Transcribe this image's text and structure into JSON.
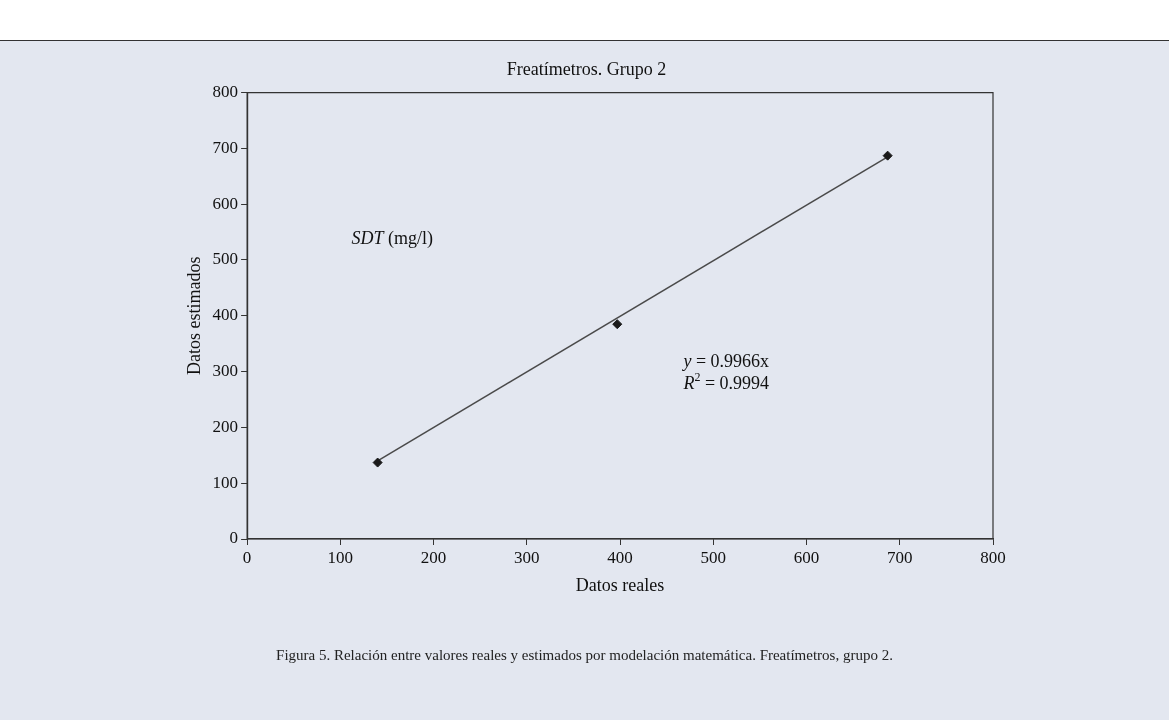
{
  "chart_data": {
    "type": "scatter",
    "title": "Freatímetros. Grupo 2",
    "xlabel": "Datos reales",
    "ylabel": "Datos estimados",
    "x": [
      140,
      397,
      687
    ],
    "series": [
      {
        "color": "#1a1a1a",
        "values": [
          137,
          385,
          687
        ],
        "marker": "diamond"
      },
      {
        "type": "line",
        "color": "#4a4a4a",
        "x": [
          140,
          687
        ],
        "values": [
          140,
          685
        ],
        "marker": "none"
      }
    ],
    "xlim": [
      0,
      800
    ],
    "xticks": [
      0,
      100,
      200,
      300,
      400,
      500,
      600,
      700,
      800
    ],
    "ylim": [
      0,
      800
    ],
    "yticks": [
      0,
      100,
      200,
      300,
      400,
      500,
      600,
      700,
      800
    ],
    "grid": false,
    "legend": false,
    "annotations": [
      "SDT (mg/l)",
      "y = 0.9966x",
      "R$^{2}$ = 0.9994",
      "Figura 5. Relación entre valores reales y estimados por modelación matemática. Freatímetros, grupo 2."
    ]
  }
}
